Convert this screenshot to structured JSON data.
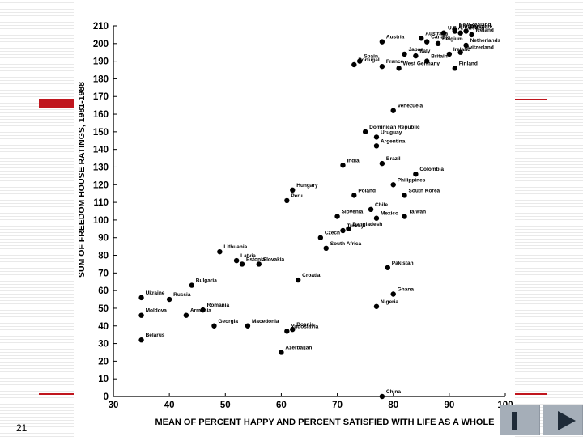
{
  "slide": {
    "page_number": "21",
    "accent_color": "#c0161e"
  },
  "nav": {
    "prev_label": "previous slide",
    "next_label": "next slide"
  },
  "chart_data": {
    "type": "scatter",
    "title": "",
    "xlabel": "MEAN OF PERCENT HAPPY AND PERCENT SATISFIED WITH LIFE AS A WHOLE",
    "ylabel": "SUM OF FREEDOM HOUSE RATINGS, 1981-1988",
    "xlim": [
      30,
      100
    ],
    "ylim": [
      0,
      210
    ],
    "xticks": [
      30,
      40,
      50,
      60,
      70,
      80,
      90,
      100
    ],
    "yticks": [
      0,
      10,
      20,
      30,
      40,
      50,
      60,
      70,
      80,
      90,
      100,
      110,
      120,
      130,
      140,
      150,
      160,
      170,
      180,
      190,
      200,
      210
    ],
    "grid": false,
    "points": [
      {
        "label": "New Zealand",
        "x": 91,
        "y": 208
      },
      {
        "label": "Norway",
        "x": 91,
        "y": 207
      },
      {
        "label": "Denmark",
        "x": 93,
        "y": 207
      },
      {
        "label": "U.S.A.",
        "x": 89,
        "y": 206
      },
      {
        "label": "Sweden",
        "x": 92,
        "y": 206
      },
      {
        "label": "Australia",
        "x": 85,
        "y": 203
      },
      {
        "label": "Iceland",
        "x": 94,
        "y": 205
      },
      {
        "label": "Austria",
        "x": 78,
        "y": 201
      },
      {
        "label": "Canada",
        "x": 86,
        "y": 201
      },
      {
        "label": "Belgium",
        "x": 88,
        "y": 200
      },
      {
        "label": "Netherlands",
        "x": 93,
        "y": 199
      },
      {
        "label": "Japan",
        "x": 82,
        "y": 194
      },
      {
        "label": "Italy",
        "x": 84,
        "y": 193
      },
      {
        "label": "Ireland",
        "x": 90,
        "y": 194
      },
      {
        "label": "Switzerland",
        "x": 92,
        "y": 195
      },
      {
        "label": "Spain",
        "x": 74,
        "y": 190
      },
      {
        "label": "Britain",
        "x": 86,
        "y": 190
      },
      {
        "label": "Portugal",
        "x": 73,
        "y": 188
      },
      {
        "label": "France",
        "x": 78,
        "y": 187
      },
      {
        "label": "West Germany",
        "x": 81,
        "y": 186
      },
      {
        "label": "Finland",
        "x": 91,
        "y": 186
      },
      {
        "label": "Venezuela",
        "x": 80,
        "y": 162
      },
      {
        "label": "Dominican Republic",
        "x": 75,
        "y": 150
      },
      {
        "label": "Uruguay",
        "x": 77,
        "y": 147
      },
      {
        "label": "Argentina",
        "x": 77,
        "y": 142
      },
      {
        "label": "India",
        "x": 71,
        "y": 131
      },
      {
        "label": "Brazil",
        "x": 78,
        "y": 132
      },
      {
        "label": "Colombia",
        "x": 84,
        "y": 126
      },
      {
        "label": "Philippines",
        "x": 80,
        "y": 120
      },
      {
        "label": "Hungary",
        "x": 62,
        "y": 117
      },
      {
        "label": "Poland",
        "x": 73,
        "y": 114
      },
      {
        "label": "South Korea",
        "x": 82,
        "y": 114
      },
      {
        "label": "Peru",
        "x": 61,
        "y": 111
      },
      {
        "label": "Chile",
        "x": 76,
        "y": 106
      },
      {
        "label": "Slovenia",
        "x": 70,
        "y": 102
      },
      {
        "label": "Mexico",
        "x": 77,
        "y": 101
      },
      {
        "label": "Taiwan",
        "x": 82,
        "y": 102
      },
      {
        "label": "Turkey",
        "x": 71,
        "y": 94
      },
      {
        "label": "Bangladesh",
        "x": 72,
        "y": 95
      },
      {
        "label": "Czech",
        "x": 67,
        "y": 90
      },
      {
        "label": "Lithuania",
        "x": 49,
        "y": 82
      },
      {
        "label": "South Africa",
        "x": 68,
        "y": 84
      },
      {
        "label": "Latvia",
        "x": 52,
        "y": 77
      },
      {
        "label": "Estonia",
        "x": 53,
        "y": 75
      },
      {
        "label": "Slovakia",
        "x": 56,
        "y": 75
      },
      {
        "label": "Pakistan",
        "x": 79,
        "y": 73
      },
      {
        "label": "Croatia",
        "x": 63,
        "y": 66
      },
      {
        "label": "Bulgaria",
        "x": 44,
        "y": 63
      },
      {
        "label": "Ghana",
        "x": 80,
        "y": 58
      },
      {
        "label": "Russia",
        "x": 40,
        "y": 55
      },
      {
        "label": "Ukraine",
        "x": 35,
        "y": 56
      },
      {
        "label": "Romania",
        "x": 46,
        "y": 49
      },
      {
        "label": "Nigeria",
        "x": 77,
        "y": 51
      },
      {
        "label": "Moldova",
        "x": 35,
        "y": 46
      },
      {
        "label": "Armenia",
        "x": 43,
        "y": 46
      },
      {
        "label": "Georgia",
        "x": 48,
        "y": 40
      },
      {
        "label": "Macedonia",
        "x": 54,
        "y": 40
      },
      {
        "label": "Bosnia",
        "x": 62,
        "y": 38
      },
      {
        "label": "Yugoslavia",
        "x": 61,
        "y": 37
      },
      {
        "label": "Belarus",
        "x": 35,
        "y": 32
      },
      {
        "label": "Azerbaijan",
        "x": 60,
        "y": 25
      },
      {
        "label": "China",
        "x": 78,
        "y": 0
      }
    ]
  }
}
